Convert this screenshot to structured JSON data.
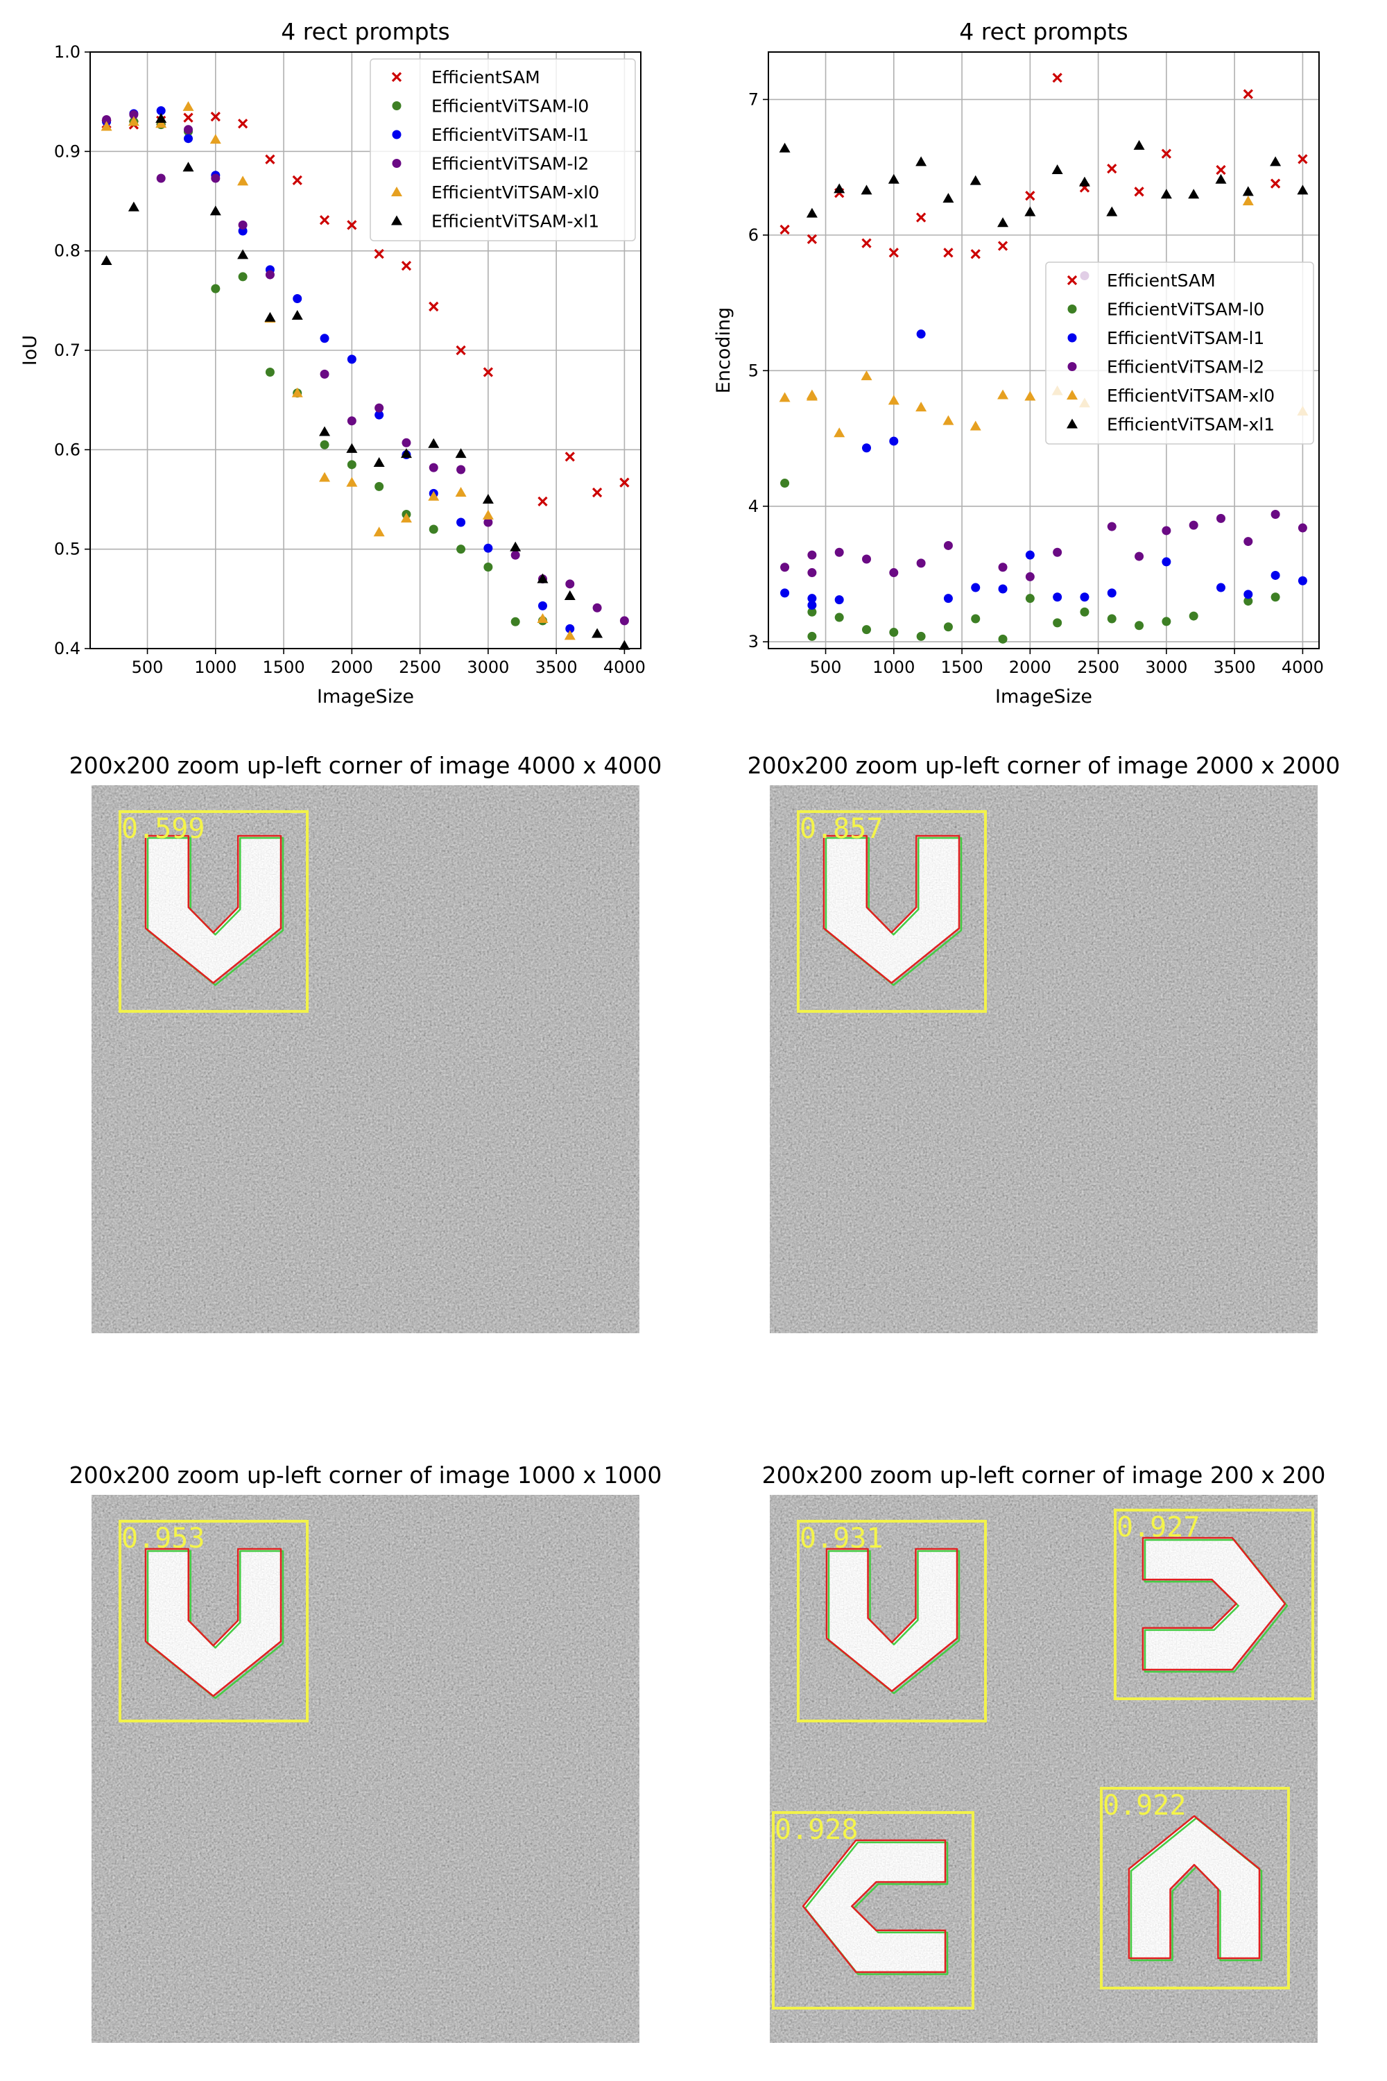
{
  "colors": {
    "EfficientSAM": "#cc0000",
    "EfficientViTSAM-l0": "#3d7f24",
    "EfficientViTSAM-l1": "#0000ee",
    "EfficientViTSAM-l2": "#6a0a84",
    "EfficientViTSAM-xl0": "#e6a020",
    "EfficientViTSAM-xl1": "#000000",
    "box": "#f2f24a",
    "mask_red": "#e02020",
    "mask_green": "#44cc44"
  },
  "chart_data": [
    {
      "type": "scatter",
      "title": "4 rect prompts",
      "xlabel": "ImageSize",
      "ylabel": "IoU",
      "xlim": [
        80,
        4120
      ],
      "ylim": [
        0.4,
        1.0
      ],
      "xticks": [
        500,
        1000,
        1500,
        2000,
        2500,
        3000,
        3500,
        4000
      ],
      "yticks": [
        0.4,
        0.5,
        0.6,
        0.7,
        0.8,
        0.9,
        1.0
      ],
      "yticklabels": [
        "0.4",
        "0.5",
        "0.6",
        "0.7",
        "0.8",
        "0.9",
        "1.0"
      ],
      "grid": true,
      "legend_position": "top-right",
      "series": [
        {
          "name": "EfficientSAM",
          "marker": "x",
          "x": [
            200,
            400,
            600,
            800,
            1000,
            1200,
            1400,
            1600,
            1800,
            2000,
            2200,
            2400,
            2600,
            2800,
            3000,
            3400,
            3600,
            3800,
            4000
          ],
          "y": [
            0.928,
            0.927,
            0.931,
            0.934,
            0.935,
            0.928,
            0.892,
            0.871,
            0.831,
            0.826,
            0.797,
            0.785,
            0.744,
            0.7,
            0.678,
            0.548,
            0.593,
            0.557,
            0.567
          ]
        },
        {
          "name": "EfficientViTSAM-l0",
          "marker": "o",
          "x": [
            200,
            400,
            600,
            800,
            1000,
            1200,
            1400,
            1600,
            1800,
            2000,
            2200,
            2400,
            2600,
            2800,
            3000,
            3200,
            3400
          ],
          "y": [
            0.93,
            0.93,
            0.927,
            0.92,
            0.762,
            0.774,
            0.678,
            0.657,
            0.605,
            0.585,
            0.563,
            0.535,
            0.52,
            0.5,
            0.482,
            0.427,
            0.428
          ]
        },
        {
          "name": "EfficientViTSAM-l1",
          "marker": "o",
          "x": [
            200,
            400,
            600,
            800,
            1000,
            1200,
            1400,
            1600,
            1800,
            2000,
            2200,
            2400,
            2600,
            2800,
            3000,
            3400,
            3600
          ],
          "y": [
            0.93,
            0.938,
            0.941,
            0.913,
            0.876,
            0.82,
            0.781,
            0.752,
            0.712,
            0.691,
            0.635,
            0.595,
            0.556,
            0.527,
            0.501,
            0.443,
            0.42
          ]
        },
        {
          "name": "EfficientViTSAM-l2",
          "marker": "o",
          "x": [
            200,
            400,
            600,
            800,
            1000,
            1200,
            1400,
            1800,
            2000,
            2200,
            2400,
            2600,
            2800,
            3000,
            3200,
            3400,
            3600,
            3800,
            4000
          ],
          "y": [
            0.932,
            0.937,
            0.873,
            0.922,
            0.873,
            0.826,
            0.776,
            0.676,
            0.629,
            0.642,
            0.607,
            0.582,
            0.58,
            0.527,
            0.494,
            0.47,
            0.465,
            0.441,
            0.428
          ]
        },
        {
          "name": "EfficientViTSAM-xl0",
          "marker": "^",
          "x": [
            200,
            400,
            600,
            800,
            1000,
            1200,
            1400,
            1600,
            1800,
            2000,
            2200,
            2400,
            2600,
            2800,
            3000,
            3400,
            3600
          ],
          "y": [
            0.925,
            0.93,
            0.928,
            0.945,
            0.912,
            0.87,
            0.732,
            0.657,
            0.572,
            0.567,
            0.517,
            0.531,
            0.553,
            0.557,
            0.534,
            0.43,
            0.413
          ]
        },
        {
          "name": "EfficientViTSAM-xl1",
          "marker": "^",
          "x": [
            200,
            400,
            600,
            800,
            1000,
            1200,
            1400,
            1600,
            1800,
            2000,
            2200,
            2400,
            2600,
            2800,
            3000,
            3200,
            3400,
            3600,
            3800,
            4000
          ],
          "y": [
            0.79,
            0.844,
            0.933,
            0.884,
            0.84,
            0.796,
            0.733,
            0.735,
            0.618,
            0.601,
            0.587,
            0.596,
            0.606,
            0.596,
            0.55,
            0.502,
            0.47,
            0.453,
            0.415,
            0.403
          ]
        }
      ]
    },
    {
      "type": "scatter",
      "title": "4 rect prompts",
      "xlabel": "ImageSize",
      "ylabel": "Encoding",
      "xlim": [
        80,
        4120
      ],
      "ylim": [
        2.95,
        7.35
      ],
      "xticks": [
        500,
        1000,
        1500,
        2000,
        2500,
        3000,
        3500,
        4000
      ],
      "yticks": [
        3,
        4,
        5,
        6,
        7
      ],
      "yticklabels": [
        "3",
        "4",
        "5",
        "6",
        "7"
      ],
      "grid": true,
      "legend_position": "center-right",
      "series": [
        {
          "name": "EfficientSAM",
          "marker": "x",
          "x": [
            200,
            400,
            600,
            800,
            1000,
            1200,
            1400,
            1600,
            1800,
            2000,
            2200,
            2400,
            2600,
            2800,
            3000,
            3400,
            3600,
            3800,
            4000
          ],
          "y": [
            6.04,
            5.97,
            6.31,
            5.94,
            5.87,
            6.13,
            5.87,
            5.86,
            5.92,
            6.29,
            7.16,
            6.35,
            6.49,
            6.32,
            6.6,
            6.48,
            7.04,
            6.38,
            6.56
          ]
        },
        {
          "name": "EfficientViTSAM-l0",
          "marker": "o",
          "x": [
            200,
            400,
            400,
            600,
            800,
            1000,
            1200,
            1400,
            1600,
            1800,
            2000,
            2200,
            2400,
            2600,
            2800,
            3000,
            3200,
            3600,
            3800
          ],
          "y": [
            4.17,
            3.22,
            3.04,
            3.18,
            3.09,
            3.07,
            3.04,
            3.11,
            3.17,
            3.02,
            3.32,
            3.14,
            3.22,
            3.17,
            3.12,
            3.15,
            3.19,
            3.3,
            3.33
          ]
        },
        {
          "name": "EfficientViTSAM-l1",
          "marker": "o",
          "x": [
            200,
            400,
            400,
            600,
            800,
            1000,
            1200,
            1400,
            1600,
            1800,
            2000,
            2200,
            2400,
            2600,
            3000,
            3400,
            3600,
            3800,
            4000
          ],
          "y": [
            3.36,
            3.32,
            3.27,
            3.31,
            4.43,
            4.48,
            5.27,
            3.32,
            3.4,
            3.39,
            3.64,
            3.33,
            3.33,
            3.36,
            3.59,
            3.4,
            3.35,
            3.49,
            3.45
          ]
        },
        {
          "name": "EfficientViTSAM-l2",
          "marker": "o",
          "x": [
            200,
            400,
            400,
            600,
            800,
            1000,
            1200,
            1400,
            1800,
            2000,
            2200,
            2400,
            2600,
            2800,
            3000,
            3200,
            3400,
            3600,
            3800,
            4000
          ],
          "y": [
            3.55,
            3.64,
            3.51,
            3.66,
            3.61,
            3.51,
            3.58,
            3.71,
            3.55,
            3.48,
            3.66,
            5.7,
            3.85,
            3.63,
            3.82,
            3.86,
            3.91,
            3.74,
            3.94,
            3.84
          ]
        },
        {
          "name": "EfficientViTSAM-xl0",
          "marker": "^",
          "x": [
            200,
            400,
            400,
            600,
            800,
            1000,
            1200,
            1400,
            1600,
            1800,
            2000,
            2200,
            2400,
            3600,
            4000
          ],
          "y": [
            4.8,
            4.81,
            4.82,
            4.54,
            4.96,
            4.78,
            4.73,
            4.63,
            4.59,
            4.82,
            4.81,
            4.85,
            4.76,
            6.25,
            4.7
          ]
        },
        {
          "name": "EfficientViTSAM-xl1",
          "marker": "^",
          "x": [
            200,
            400,
            600,
            800,
            1000,
            1200,
            1400,
            1600,
            1800,
            2000,
            2200,
            2400,
            2600,
            2800,
            3000,
            3200,
            3400,
            3600,
            3800,
            4000
          ],
          "y": [
            6.64,
            6.16,
            6.34,
            6.33,
            6.41,
            6.54,
            6.27,
            6.4,
            6.09,
            6.17,
            6.48,
            6.39,
            6.17,
            6.66,
            6.3,
            6.3,
            6.41,
            6.32,
            6.54,
            6.33
          ]
        }
      ]
    }
  ],
  "zoom_panels": [
    {
      "title": "200x200 zoom up-left corner of image 4000 x 4000",
      "detections": [
        {
          "shape": "down",
          "score": "0.599"
        }
      ]
    },
    {
      "title": "200x200 zoom up-left corner of image 2000 x 2000",
      "detections": [
        {
          "shape": "down",
          "score": "0.857"
        }
      ]
    },
    {
      "title": "200x200 zoom up-left corner of image 1000 x 1000",
      "detections": [
        {
          "shape": "down",
          "score": "0.953"
        }
      ]
    },
    {
      "title": "200x200 zoom up-left corner of image 200 x 200",
      "detections": [
        {
          "shape": "down",
          "score": "0.931"
        },
        {
          "shape": "right",
          "score": "0.927"
        },
        {
          "shape": "left",
          "score": "0.928"
        },
        {
          "shape": "up",
          "score": "0.922"
        }
      ]
    }
  ]
}
